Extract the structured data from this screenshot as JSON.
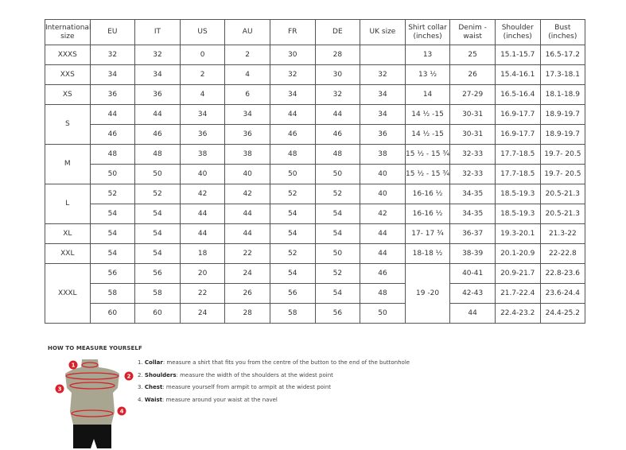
{
  "headers": [
    "International size",
    "EU",
    "IT",
    "US",
    "AU",
    "FR",
    "DE",
    "UK size",
    "Shirt collar (inches)",
    "Denim - waist",
    "Shoulder (inches)",
    "Bust (inches)"
  ],
  "groups": [
    {
      "size": "XXXS",
      "rows": [
        [
          "32",
          "32",
          "0",
          "2",
          "30",
          "28",
          "",
          "13",
          "25",
          "15.1-15.7",
          "16.5-17.2"
        ]
      ]
    },
    {
      "size": "XXS",
      "rows": [
        [
          "34",
          "34",
          "2",
          "4",
          "32",
          "30",
          "32",
          "13 ½",
          "26",
          "15.4-16.1",
          "17.3-18.1"
        ]
      ]
    },
    {
      "size": "XS",
      "rows": [
        [
          "36",
          "36",
          "4",
          "6",
          "34",
          "32",
          "34",
          "14",
          "27-29",
          "16.5-16.4",
          "18.1-18.9"
        ]
      ]
    },
    {
      "size": "S",
      "rows": [
        [
          "44",
          "44",
          "34",
          "34",
          "44",
          "44",
          "34",
          "14 ½ -15",
          "30-31",
          "16.9-17.7",
          "18.9-19.7"
        ],
        [
          "46",
          "46",
          "36",
          "36",
          "46",
          "46",
          "36",
          "14 ½ -15",
          "30-31",
          "16.9-17.7",
          "18.9-19.7"
        ]
      ]
    },
    {
      "size": "M",
      "rows": [
        [
          "48",
          "48",
          "38",
          "38",
          "48",
          "48",
          "38",
          "15 ½ - 15 ¾",
          "32-33",
          "17.7-18.5",
          "19.7- 20.5"
        ],
        [
          "50",
          "50",
          "40",
          "40",
          "50",
          "50",
          "40",
          "15 ½ - 15 ¾",
          "32-33",
          "17.7-18.5",
          "19.7- 20.5"
        ]
      ]
    },
    {
      "size": "L",
      "rows": [
        [
          "52",
          "52",
          "42",
          "42",
          "52",
          "52",
          "40",
          "16-16 ½",
          "34-35",
          "18.5-19.3",
          "20.5-21.3"
        ],
        [
          "54",
          "54",
          "44",
          "44",
          "54",
          "54",
          "42",
          "16-16 ½",
          "34-35",
          "18.5-19.3",
          "20.5-21.3"
        ]
      ]
    },
    {
      "size": "XL",
      "rows": [
        [
          "54",
          "54",
          "44",
          "44",
          "54",
          "54",
          "44",
          "17- 17 ¾",
          "36-37",
          "19.3-20.1",
          "21.3-22"
        ]
      ]
    },
    {
      "size": "XXL",
      "rows": [
        [
          "54",
          "54",
          "18",
          "22",
          "52",
          "50",
          "44",
          "18-18 ½",
          "38-39",
          "20.1-20.9",
          "22-22.8"
        ]
      ]
    },
    {
      "size": "XXXL",
      "merged_collar": "19 -20",
      "rows": [
        [
          "56",
          "56",
          "20",
          "24",
          "54",
          "52",
          "46",
          "",
          "40-41",
          "20.9-21.7",
          "22.8-23.6"
        ],
        [
          "58",
          "58",
          "22",
          "26",
          "56",
          "54",
          "48",
          "",
          "42-43",
          "21.7-22.4",
          "23.6-24.4"
        ],
        [
          "60",
          "60",
          "24",
          "28",
          "58",
          "56",
          "50",
          "",
          "44",
          "22.4-23.2",
          "24.4-25.2"
        ]
      ]
    }
  ],
  "guide": {
    "title": "HOW TO MEASURE YOURSELF",
    "steps": [
      {
        "num": "1.",
        "term": "Collar",
        "text": ": measure a shirt that fits you from the centre of the button to the end of the buttonhole"
      },
      {
        "num": "2.",
        "term": "Shoulders",
        "text": ": measure the width of the shoulders at the widest point"
      },
      {
        "num": "3.",
        "term": "Chest",
        "text": ": measure yourself from armpit to armpit at the widest point"
      },
      {
        "num": "4.",
        "term": "Waist",
        "text": ": measure around your waist at the navel"
      }
    ],
    "markers": [
      "1",
      "2",
      "3",
      "4"
    ],
    "colors": {
      "marker": "#d8202a",
      "body": "#a8a690",
      "shorts": "#111111"
    }
  }
}
